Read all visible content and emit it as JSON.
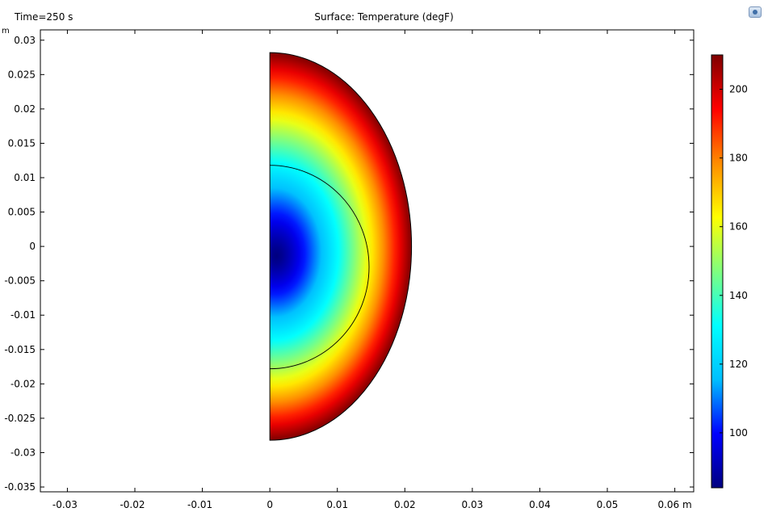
{
  "header": {
    "time_label": "Time=250 s",
    "title": "Surface: Temperature (degF)",
    "unit": "m"
  },
  "chart_data": {
    "type": "heatmap",
    "title": "Surface: Temperature (degF)",
    "annotation": "Time=250 s",
    "xlabel": "",
    "ylabel": "m",
    "xlim": [
      -0.034,
      0.0628
    ],
    "ylim": [
      -0.0357,
      0.0315
    ],
    "x_ticks": [
      -0.03,
      -0.02,
      -0.01,
      0,
      0.01,
      0.02,
      0.03,
      0.04,
      0.05,
      0.06
    ],
    "x_tick_labels": [
      "-0.03",
      "-0.02",
      "-0.01",
      "0",
      "0.01",
      "0.02",
      "0.03",
      "0.04",
      "0.05",
      "0.06 m"
    ],
    "y_ticks": [
      0.03,
      0.025,
      0.02,
      0.015,
      0.01,
      0.005,
      0,
      -0.005,
      -0.01,
      -0.015,
      -0.02,
      -0.025,
      -0.03,
      -0.035
    ],
    "y_tick_labels": [
      "0.03",
      "0.025",
      "0.02",
      "0.015",
      "0.01",
      "0.005",
      "0",
      "-0.005",
      "-0.01",
      "-0.015",
      "-0.02",
      "-0.025",
      "-0.03",
      "-0.035"
    ],
    "grid": false,
    "domain": {
      "outer_semi_ellipse": {
        "center": [
          0,
          0
        ],
        "semi_x": 0.021,
        "semi_y": 0.0282
      },
      "inner_boundary_ellipse": {
        "center": [
          0,
          -0.003
        ],
        "semi_x": 0.0147,
        "semi_y": 0.0148
      }
    },
    "field": {
      "quantity": "Temperature",
      "unit": "degF",
      "coldest_point": [
        0.001,
        -0.001
      ],
      "min": 84,
      "max": 210,
      "boundary_value": 210
    },
    "colorbar": {
      "min": 84,
      "max": 210,
      "ticks": [
        100,
        120,
        140,
        160,
        180,
        200
      ],
      "colors": [
        "#00007f",
        "#0000ff",
        "#00bfff",
        "#00ffff",
        "#7fff7f",
        "#ffff00",
        "#ff8c00",
        "#ff0000",
        "#7f0000"
      ]
    }
  }
}
